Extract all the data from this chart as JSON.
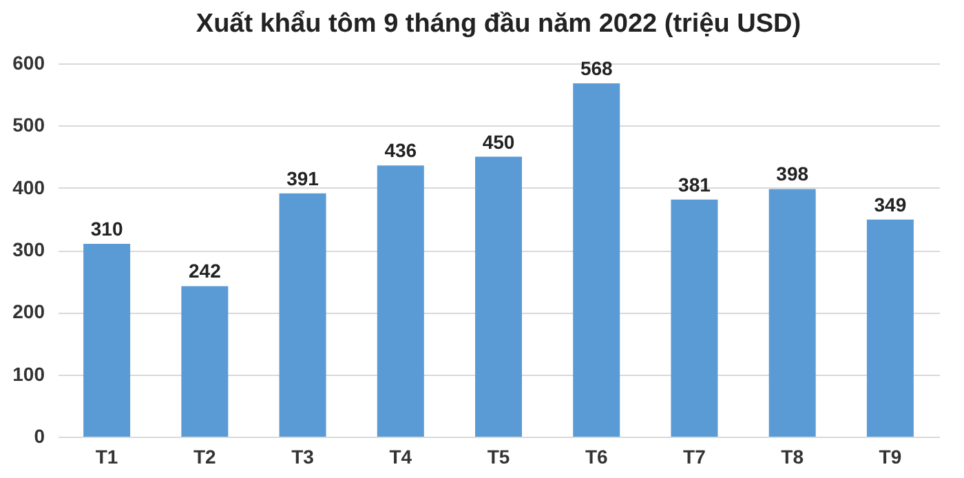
{
  "chart_data": {
    "type": "bar",
    "title": "Xuất khẩu tôm 9 tháng đầu năm 2022 (triệu USD)",
    "categories": [
      "T1",
      "T2",
      "T3",
      "T4",
      "T5",
      "T6",
      "T7",
      "T8",
      "T9"
    ],
    "values": [
      310,
      242,
      391,
      436,
      450,
      568,
      381,
      398,
      349
    ],
    "color": "#5b9bd5",
    "ylim": [
      0,
      600
    ],
    "yticks": [
      0,
      100,
      200,
      300,
      400,
      500,
      600
    ],
    "grid": "y",
    "data_labels": true
  }
}
